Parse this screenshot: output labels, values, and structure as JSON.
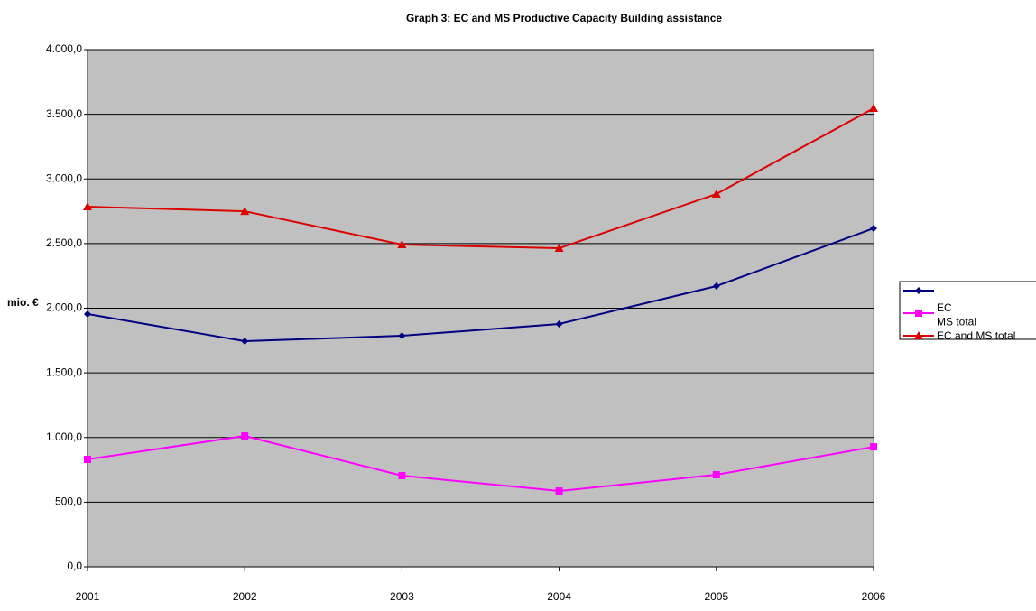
{
  "chart_data": {
    "type": "line",
    "title": "Graph 3: EC and MS Productive Capacity Building assistance",
    "y_label": "mio. €",
    "categories": [
      "2001",
      "2002",
      "2003",
      "2004",
      "2005",
      "2006"
    ],
    "series": [
      {
        "name": "EC",
        "color": "#000080",
        "marker": "diamond",
        "values": [
          1955,
          1745,
          1787,
          1878,
          2171,
          2618
        ]
      },
      {
        "name": "MS total",
        "color": "#ff00ff",
        "marker": "square",
        "values": [
          831,
          1012,
          705,
          586,
          712,
          928
        ]
      },
      {
        "name": "EC and MS total",
        "color": "#dd0000",
        "marker": "triangle",
        "values": [
          2785,
          2750,
          2492,
          2464,
          2883,
          3546
        ]
      }
    ],
    "ylim": [
      0,
      4000
    ],
    "yticks": [
      {
        "value": 0,
        "label": "0,0"
      },
      {
        "value": 500,
        "label": "500,0"
      },
      {
        "value": 1000,
        "label": "1.000,0"
      },
      {
        "value": 1500,
        "label": "1.500,0"
      },
      {
        "value": 2000,
        "label": "2.000,0"
      },
      {
        "value": 2500,
        "label": "2.500,0"
      },
      {
        "value": 3000,
        "label": "3.000,0"
      },
      {
        "value": 3500,
        "label": "3.500,0"
      },
      {
        "value": 4000,
        "label": "4.000,0"
      }
    ],
    "grid": true,
    "plot_background": "#c0c0c0",
    "legend": "right"
  }
}
